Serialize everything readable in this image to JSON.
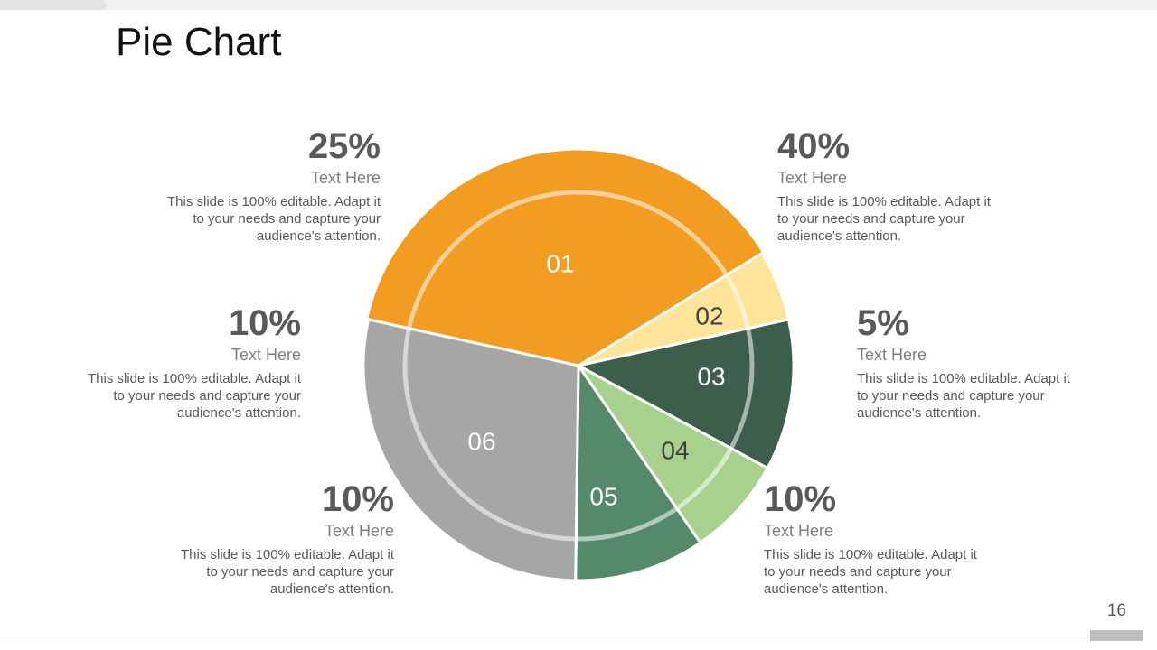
{
  "slide": {
    "title": "Pie Chart",
    "page_number": "16"
  },
  "chart_data": {
    "type": "pie",
    "slices": [
      {
        "label": "01",
        "color": "#f29c22",
        "text_color": "#ffffff"
      },
      {
        "label": "02",
        "color": "#fde498",
        "text_color": "#404040"
      },
      {
        "label": "03",
        "color": "#3d5e4a",
        "text_color": "#ffffff"
      },
      {
        "label": "04",
        "color": "#a9d18e",
        "text_color": "#404040"
      },
      {
        "label": "05",
        "color": "#548a6a",
        "text_color": "#ffffff"
      },
      {
        "label": "06",
        "color": "#a6a6a6",
        "text_color": "#ffffff"
      }
    ],
    "angles_deg": [
      [
        -77.6,
        58.5
      ],
      [
        58.5,
        77.6
      ],
      [
        77.6,
        118.5
      ],
      [
        118.5,
        145.5
      ],
      [
        145.5,
        180.8
      ],
      [
        180.8,
        282.4
      ]
    ]
  },
  "callouts": {
    "c01": {
      "percent": "25%",
      "heading": "Text Here",
      "lines": [
        "This slide is 100% editable. Adapt it",
        "to your needs and capture your",
        "audience's attention."
      ]
    },
    "c02": {
      "percent": "40%",
      "heading": "Text Here",
      "lines": [
        "This slide is 100% editable. Adapt it",
        "to your needs and capture your",
        "audience's attention."
      ]
    },
    "c03": {
      "percent": "10%",
      "heading": "Text Here",
      "lines": [
        "This slide is 100% editable. Adapt it",
        "to your needs and capture your",
        "audience's attention."
      ]
    },
    "c04": {
      "percent": "5%",
      "heading": "Text Here",
      "lines": [
        "This slide is 100% editable. Adapt it",
        "to your needs and capture your",
        "audience's attention."
      ]
    },
    "c05": {
      "percent": "10%",
      "heading": "Text Here",
      "lines": [
        "This slide is 100% editable. Adapt it",
        "to your needs and capture your",
        "audience's attention."
      ]
    },
    "c06": {
      "percent": "10%",
      "heading": "Text Here",
      "lines": [
        "This slide is 100% editable. Adapt it",
        "to your needs and capture your",
        "audience's attention."
      ]
    }
  }
}
